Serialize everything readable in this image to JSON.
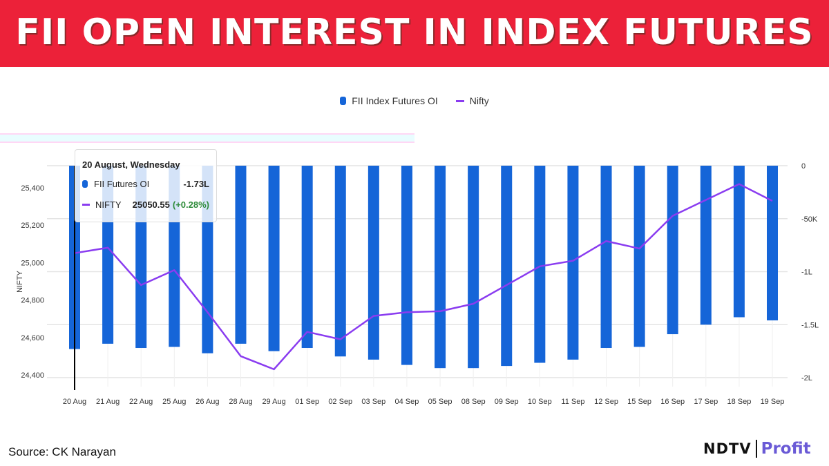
{
  "header": {
    "title": "FII OPEN INTEREST IN INDEX FUTURES"
  },
  "colors": {
    "banner": "#ec2139",
    "bar": "#1565d8",
    "line": "#8a3cf0",
    "positive": "#2e8b3a",
    "grid": "#e4e4e4"
  },
  "legend": [
    {
      "label": "FII Index Futures OI",
      "icon": "bar-swatch-icon",
      "color": "#1565d8"
    },
    {
      "label": "Nifty",
      "icon": "line-swatch-icon",
      "color": "#8a3cf0"
    }
  ],
  "tooltip": {
    "title": "20 August, Wednesday",
    "rows": [
      {
        "label": "FII Futures OI",
        "value": "-1.73L",
        "change": ""
      },
      {
        "label": "NIFTY",
        "value": "25050.55",
        "change": "(+0.28%)"
      }
    ]
  },
  "footer": {
    "source": "Source: CK Narayan",
    "brand_left": "NDTV",
    "brand_right": "Profit"
  },
  "chart_data": {
    "type": "bar",
    "title": "FII OPEN INTEREST IN INDEX FUTURES",
    "categories": [
      "20 Aug",
      "21 Aug",
      "22 Aug",
      "25 Aug",
      "26 Aug",
      "28 Aug",
      "29 Aug",
      "01 Sep",
      "02 Sep",
      "03 Sep",
      "04 Sep",
      "05 Sep",
      "08 Sep",
      "09 Sep",
      "10 Sep",
      "11 Sep",
      "12 Sep",
      "15 Sep",
      "16 Sep",
      "17 Sep",
      "18 Sep",
      "19 Sep"
    ],
    "series": [
      {
        "name": "FII Index Futures OI",
        "type": "bar",
        "axis": "right",
        "unit": "contracts",
        "values": [
          -173000,
          -168000,
          -172000,
          -171000,
          -177000,
          -168000,
          -175000,
          -172000,
          -180000,
          -183000,
          -188000,
          -191000,
          -191000,
          -189000,
          -186000,
          -183000,
          -172000,
          -171000,
          -159000,
          -150000,
          -143000,
          -146000
        ]
      },
      {
        "name": "Nifty",
        "type": "line",
        "axis": "left",
        "values": [
          25050.55,
          25080,
          24880,
          24960,
          24735,
          24500,
          24430,
          24630,
          24590,
          24715,
          24735,
          24740,
          24780,
          24880,
          24980,
          25010,
          25115,
          25075,
          25250,
          25335,
          25420,
          25330
        ]
      }
    ],
    "xlabel": "",
    "ylabel_left": "NIFTY",
    "ylabel_right": "",
    "left_axis": {
      "ticks": [
        "25,400",
        "25,200",
        "25,000",
        "24,800",
        "24,600",
        "24,400"
      ],
      "range": [
        24400,
        25500
      ]
    },
    "right_axis": {
      "ticks": [
        "0",
        "-50K",
        "-1L",
        "-1.5L",
        "-2L"
      ],
      "range": [
        -200000,
        0
      ]
    },
    "grid": true,
    "legend_position": "top-center"
  }
}
